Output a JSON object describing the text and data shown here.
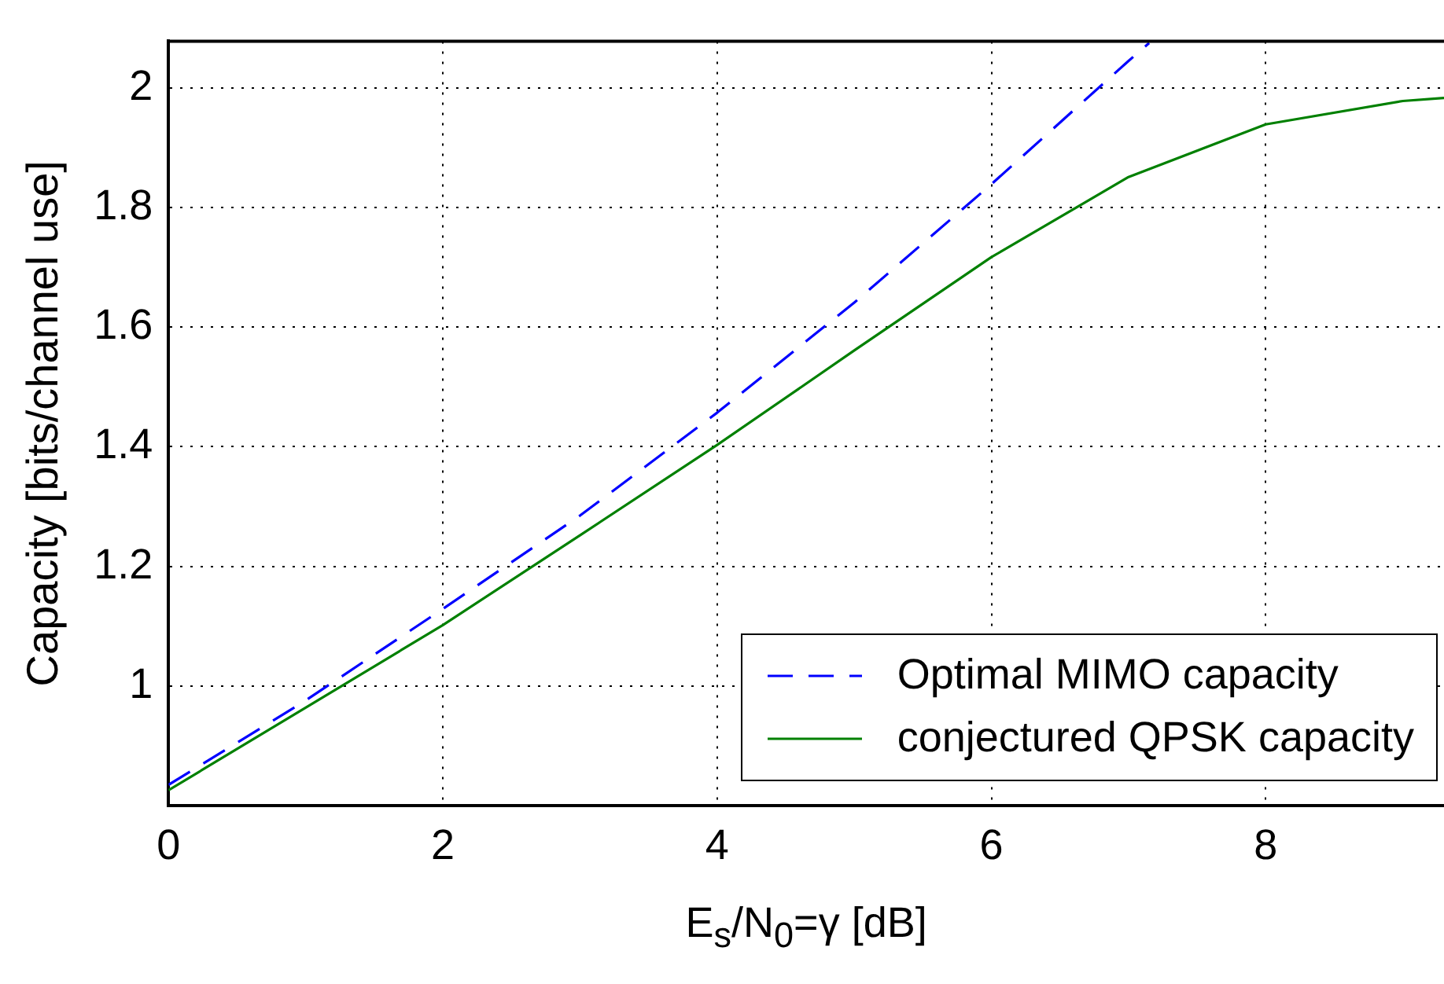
{
  "chart_data": {
    "type": "line",
    "xlabel": "E$_{s}$/N$_{0}$=γ [dB]",
    "ylabel": "Capacity [bits/channel use]",
    "xlim": [
      0,
      9.3
    ],
    "ylim": [
      0.8,
      2.078
    ],
    "xticks": [
      0,
      2,
      4,
      6,
      8
    ],
    "yticks": [
      1,
      1.2,
      1.4,
      1.6,
      1.8,
      2
    ],
    "grid": true,
    "legend": "bottom right",
    "marker": "none",
    "series": [
      {
        "name": "Optimal MIMO capacity",
        "color": "#0000ff",
        "line_style": "dashed",
        "x": [
          0,
          1,
          2,
          3,
          4,
          5,
          6,
          7,
          7.15
        ],
        "values": [
          0.835,
          0.976,
          1.129,
          1.285,
          1.457,
          1.641,
          1.839,
          2.045,
          2.075
        ]
      },
      {
        "name": "conjectured QPSK capacity",
        "color": "#008000",
        "line_style": "solid",
        "x": [
          0,
          1,
          2,
          3,
          4,
          5,
          6,
          7,
          8,
          9,
          9.3
        ],
        "values": [
          0.826,
          0.964,
          1.102,
          1.252,
          1.403,
          1.561,
          1.717,
          1.851,
          1.939,
          1.978,
          1.983
        ]
      }
    ]
  }
}
